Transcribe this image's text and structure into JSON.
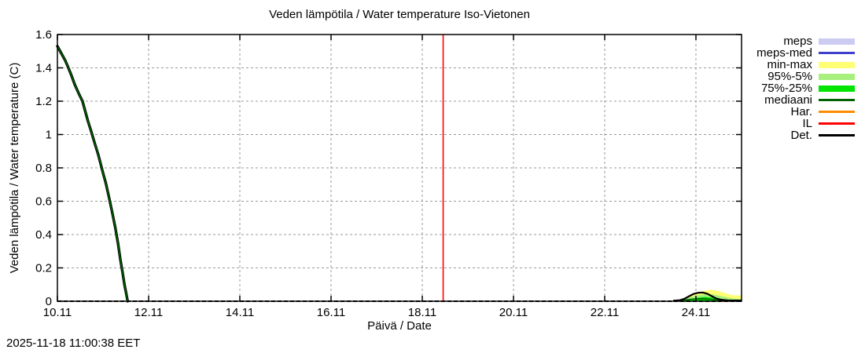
{
  "title": "Veden lämpötila / Water temperature Iso-Vietonen",
  "timestamp": "2025-11-18 11:00:38 EET",
  "colors": {
    "background": "#ffffff",
    "grid": "#999999",
    "axis": "#000000",
    "current_time_line": "#ff0000"
  },
  "chart_data": {
    "type": "line",
    "title": "Veden lämpötila / Water temperature Iso-Vietonen",
    "xlabel": "Päivä / Date",
    "ylabel": "Veden lämpötila / Water temperature (C)",
    "grid": true,
    "legend_position": "outside-right",
    "x_axis": {
      "unit": "day of November (10.0 = 10.11 00:00)",
      "min": 10,
      "max": 25,
      "tick_days": [
        10,
        12,
        14,
        16,
        18,
        20,
        22,
        24
      ],
      "tick_labels": [
        "10.11",
        "12.11",
        "14.11",
        "16.11",
        "18.11",
        "20.11",
        "22.11",
        "24.11"
      ]
    },
    "y_axis": {
      "min": 0,
      "max": 1.6,
      "tick_values": [
        0,
        0.2,
        0.4,
        0.6,
        0.8,
        1,
        1.2,
        1.4,
        1.6
      ],
      "tick_labels": [
        "0",
        "0.2",
        "0.4",
        "0.6",
        "0.8",
        "1",
        "1.2",
        "1.4",
        "1.6"
      ]
    },
    "current_time_marker": {
      "label": "IL",
      "day": 18.458,
      "color": "#ff0000"
    },
    "zero_axis": {
      "style": "dashed",
      "color": "#000000"
    },
    "legend": [
      {
        "label": "meps",
        "style": "band",
        "color": "#ccccf2"
      },
      {
        "label": "meps-med",
        "style": "line",
        "color": "#4040cc"
      },
      {
        "label": "min-max",
        "style": "band",
        "color": "#ffff73"
      },
      {
        "label": "95%-5%",
        "style": "band",
        "color": "#a8f07d"
      },
      {
        "label": "75%-25%",
        "style": "band",
        "color": "#00e400"
      },
      {
        "label": "mediaani",
        "style": "line",
        "color": "#006400"
      },
      {
        "label": "Har.",
        "style": "line",
        "color": "#ff8c00"
      },
      {
        "label": "IL",
        "style": "line",
        "color": "#ff0000"
      },
      {
        "label": "Det.",
        "style": "line",
        "color": "#000000"
      }
    ],
    "bands": [
      {
        "name": "min-max",
        "color": "#ffff73",
        "upper": [
          [
            23.55,
            0.004
          ],
          [
            23.8,
            0.02
          ],
          [
            24.0,
            0.05
          ],
          [
            24.2,
            0.064
          ],
          [
            24.35,
            0.068
          ],
          [
            24.5,
            0.062
          ],
          [
            24.65,
            0.048
          ],
          [
            24.8,
            0.036
          ],
          [
            24.95,
            0.035
          ],
          [
            25,
            0.035
          ]
        ]
      },
      {
        "name": "95%-5%",
        "color": "#a8f07d",
        "upper": [
          [
            23.65,
            0.003
          ],
          [
            24.0,
            0.034
          ],
          [
            24.2,
            0.042
          ],
          [
            24.4,
            0.04
          ],
          [
            24.6,
            0.028
          ],
          [
            24.8,
            0.017
          ],
          [
            25,
            0.013
          ]
        ]
      },
      {
        "name": "75%-25%",
        "color": "#00e400",
        "upper": [
          [
            23.75,
            0.002
          ],
          [
            24.0,
            0.02
          ],
          [
            24.2,
            0.026
          ],
          [
            24.4,
            0.02
          ],
          [
            24.6,
            0.011
          ],
          [
            24.8,
            0.006
          ],
          [
            25,
            0.004
          ]
        ]
      }
    ],
    "observed": {
      "name": "Det. + mediaani (observed)",
      "outline_color": "#000000",
      "core_color": "#006400",
      "points": [
        [
          10.0,
          1.53
        ],
        [
          10.08,
          1.49
        ],
        [
          10.17,
          1.445
        ],
        [
          10.21,
          1.42
        ],
        [
          10.3,
          1.36
        ],
        [
          10.38,
          1.3
        ],
        [
          10.47,
          1.245
        ],
        [
          10.55,
          1.2
        ],
        [
          10.61,
          1.14
        ],
        [
          10.67,
          1.08
        ],
        [
          10.74,
          1.02
        ],
        [
          10.81,
          0.955
        ],
        [
          10.9,
          0.875
        ],
        [
          10.98,
          0.79
        ],
        [
          11.06,
          0.71
        ],
        [
          11.13,
          0.625
        ],
        [
          11.2,
          0.535
        ],
        [
          11.27,
          0.44
        ],
        [
          11.33,
          0.345
        ],
        [
          11.38,
          0.25
        ],
        [
          11.43,
          0.17
        ],
        [
          11.47,
          0.1
        ],
        [
          11.51,
          0.045
        ],
        [
          11.54,
          0.0
        ]
      ]
    },
    "forecast_median": {
      "name": "mediaani (forecast)",
      "color": "#006400",
      "points": [
        [
          23.6,
          0.002
        ],
        [
          23.9,
          0.012
        ],
        [
          24.15,
          0.015
        ],
        [
          24.4,
          0.01
        ],
        [
          24.7,
          0.005
        ],
        [
          25,
          0.003
        ]
      ]
    },
    "forecast_det": {
      "name": "Det. (forecast)",
      "color": "#000000",
      "points": [
        [
          23.5,
          0.003
        ],
        [
          23.65,
          0.006
        ],
        [
          23.75,
          0.015
        ],
        [
          23.85,
          0.03
        ],
        [
          23.95,
          0.044
        ],
        [
          24.05,
          0.051
        ],
        [
          24.15,
          0.052
        ],
        [
          24.25,
          0.045
        ],
        [
          24.35,
          0.03
        ],
        [
          24.45,
          0.016
        ],
        [
          24.55,
          0.009
        ],
        [
          24.7,
          0.005
        ],
        [
          24.85,
          0.004
        ],
        [
          25,
          0.004
        ]
      ]
    }
  }
}
